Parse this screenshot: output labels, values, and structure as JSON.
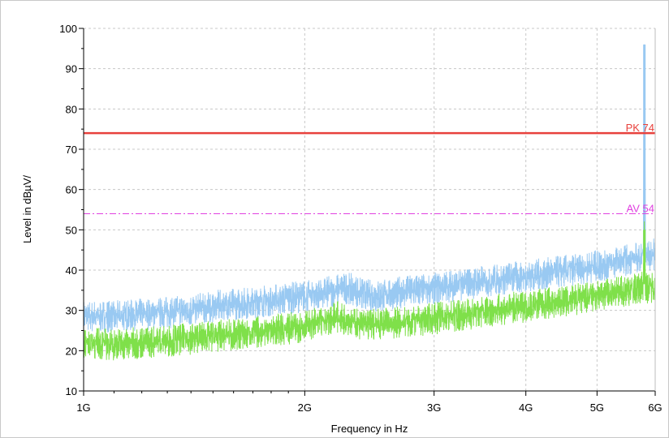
{
  "chart_data": {
    "type": "line",
    "title": "",
    "xlabel": "Frequency in Hz",
    "ylabel": "Level in dBµV/",
    "x_scale": "log",
    "xlim": [
      1000000000,
      6000000000
    ],
    "ylim": [
      10,
      100
    ],
    "x_ticks": [
      {
        "value": 1000000000,
        "label": "1G"
      },
      {
        "value": 2000000000,
        "label": "2G"
      },
      {
        "value": 3000000000,
        "label": "3G"
      },
      {
        "value": 4000000000,
        "label": "4G"
      },
      {
        "value": 5000000000,
        "label": "5G"
      },
      {
        "value": 6000000000,
        "label": "6G"
      }
    ],
    "y_ticks": [
      {
        "value": 10,
        "label": "10"
      },
      {
        "value": 20,
        "label": "20"
      },
      {
        "value": 30,
        "label": "30"
      },
      {
        "value": 40,
        "label": "40"
      },
      {
        "value": 50,
        "label": "50"
      },
      {
        "value": 60,
        "label": "60"
      },
      {
        "value": 70,
        "label": "70"
      },
      {
        "value": 80,
        "label": "80"
      },
      {
        "value": 90,
        "label": "90"
      },
      {
        "value": 100,
        "label": "100"
      }
    ],
    "grid": true,
    "limit_lines": [
      {
        "label": "PK 74",
        "value": 74,
        "color": "#e8413c",
        "style": "solid"
      },
      {
        "label": "AV 54",
        "value": 54,
        "color": "#e040e0",
        "style": "dashdot"
      }
    ],
    "series": [
      {
        "color": "#99c9f2",
        "x": [
          1000000000,
          1100000000,
          1200000000,
          1300000000,
          1400000000,
          1500000000,
          1600000000,
          1700000000,
          1800000000,
          1900000000,
          2000000000,
          2100000000,
          2200000000,
          2300000000,
          2400000000,
          2500000000,
          2700000000,
          3000000000,
          3300000000,
          3600000000,
          4000000000,
          4400000000,
          4800000000,
          5200000000,
          5500000000,
          5700000000,
          5750000000,
          5780000000,
          5800000000,
          5820000000,
          5850000000,
          5900000000,
          6000000000
        ],
        "y": [
          28.5,
          28.5,
          29,
          29.5,
          30,
          31,
          31.5,
          32,
          32.5,
          33,
          33.5,
          34,
          35,
          35.5,
          34,
          33.5,
          34.5,
          35.5,
          36.5,
          37.5,
          38.5,
          39.5,
          40.5,
          41.5,
          42.5,
          43,
          43.5,
          44,
          96,
          44,
          43.5,
          43.5,
          44
        ]
      },
      {
        "color": "#7fe04a",
        "x": [
          1000000000,
          1100000000,
          1200000000,
          1300000000,
          1400000000,
          1500000000,
          1600000000,
          1700000000,
          1800000000,
          1900000000,
          2000000000,
          2100000000,
          2200000000,
          2300000000,
          2400000000,
          2500000000,
          2700000000,
          3000000000,
          3300000000,
          3600000000,
          4000000000,
          4400000000,
          4800000000,
          5200000000,
          5500000000,
          5700000000,
          5750000000,
          5780000000,
          5800000000,
          5820000000,
          5850000000,
          5900000000,
          6000000000
        ],
        "y": [
          22,
          21.5,
          22,
          22.5,
          23,
          23.5,
          24,
          24.5,
          25,
          25.5,
          26,
          27,
          28.5,
          27.5,
          26.5,
          26.5,
          27,
          28,
          29,
          30,
          31,
          32,
          33,
          34,
          35,
          35.5,
          36,
          36.5,
          50,
          36,
          35.5,
          35.5,
          36.5
        ]
      }
    ]
  }
}
